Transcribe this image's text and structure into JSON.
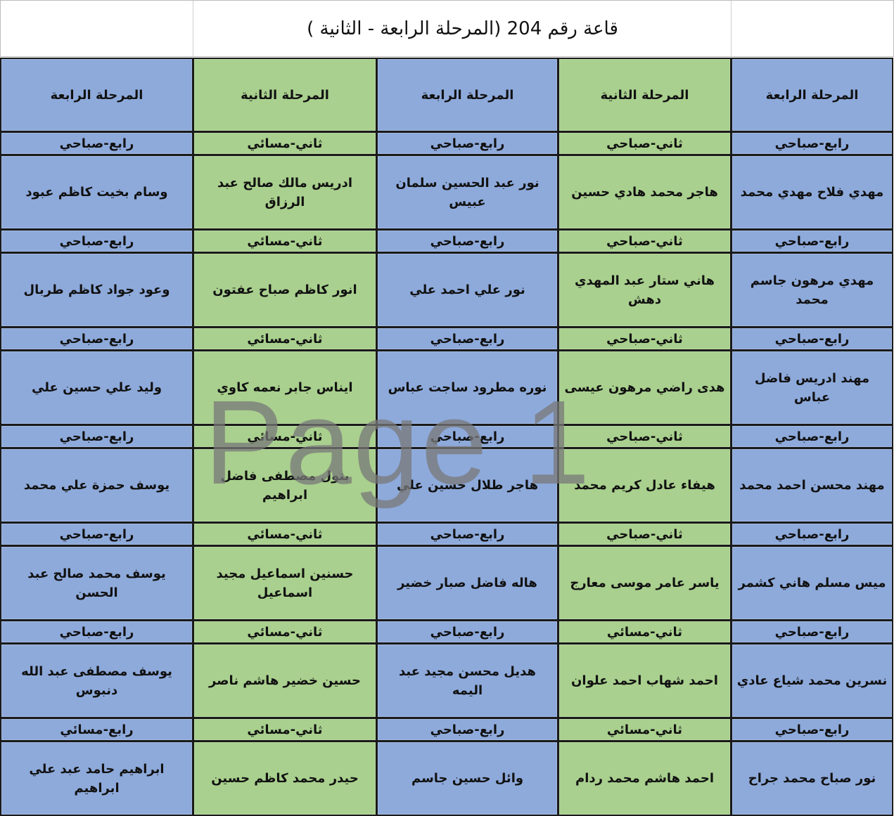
{
  "title": "قاعة رقم 204 (المرحلة الرابعة - الثانية )",
  "watermark": "Page 1",
  "colors": {
    "blue": "#8eaadb",
    "green": "#a9d08e"
  },
  "headers": [
    "المرحلة الرابعة",
    "المرحلة الثانية",
    "المرحلة الرابعة",
    "المرحلة الثانية",
    "المرحلة الرابعة"
  ],
  "rows": [
    {
      "tags": [
        "رابع-صباحي",
        "ثاني-صباحي",
        "رابع-صباحي",
        "ثاني-مسائي",
        "رابع-صباحي"
      ],
      "names": [
        "مهدي فلاح مهدي محمد",
        "هاجر محمد هادي حسين",
        "نور عبد الحسين سلمان عبيس",
        "ادريس مالك صالح عبد الرزاق",
        "وسام بخيت كاظم عبود"
      ]
    },
    {
      "tags": [
        "رابع-صباحي",
        "ثاني-صباحي",
        "رابع-صباحي",
        "ثاني-مسائي",
        "رابع-صباحي"
      ],
      "names": [
        "مهدي مرهون جاسم محمد",
        "هاني ستار عبد المهدي دهش",
        "نور علي احمد علي",
        "انور كاظم صباح عفتون",
        "وعود جواد كاظم طربال"
      ]
    },
    {
      "tags": [
        "رابع-صباحي",
        "ثاني-صباحي",
        "رابع-صباحي",
        "ثاني-مسائي",
        "رابع-صباحي"
      ],
      "names": [
        "مهند ادريس فاضل عباس",
        "هدى راضي مرهون عيسى",
        "نوره مطرود ساجت عباس",
        "ايناس جابر نعمه كاوي",
        "وليد علي حسين علي"
      ]
    },
    {
      "tags": [
        "رابع-صباحي",
        "ثاني-صباحي",
        "رابع-صباحي",
        "ثاني-مسائي",
        "رابع-صباحي"
      ],
      "names": [
        "مهند محسن احمد محمد",
        "هيفاء عادل كريم محمد",
        "هاجر طلال حسين علي",
        "بتول مصطفى فاضل ابراهيم",
        "يوسف حمزة علي محمد"
      ]
    },
    {
      "tags": [
        "رابع-صباحي",
        "ثاني-صباحي",
        "رابع-صباحي",
        "ثاني-مسائي",
        "رابع-صباحي"
      ],
      "names": [
        "ميس مسلم هاني كشمر",
        "ياسر عامر موسى معارج",
        "هاله فاضل صبار خضير",
        "حسنين اسماعيل مجيد اسماعيل",
        "يوسف محمد صالح عبد الحسن"
      ]
    },
    {
      "tags": [
        "رابع-صباحي",
        "ثاني-مسائي",
        "رابع-صباحي",
        "ثاني-مسائي",
        "رابع-صباحي"
      ],
      "names": [
        "نسرين محمد شياع عادي",
        "احمد شهاب احمد علوان",
        "هديل محسن مجيد عبد اليمه",
        "حسين خضير هاشم ناصر",
        "يوسف مصطفى عبد الله دنبوس"
      ]
    },
    {
      "tags": [
        "رابع-صباحي",
        "ثاني-مسائي",
        "رابع-صباحي",
        "ثاني-مسائي",
        "رابع-مسائي"
      ],
      "names": [
        "نور صباح محمد جراح",
        "احمد هاشم محمد ردام",
        "وائل حسين جاسم",
        "حيدر محمد كاظم حسين",
        "ابراهيم حامد عبد علي ابراهيم"
      ]
    }
  ]
}
